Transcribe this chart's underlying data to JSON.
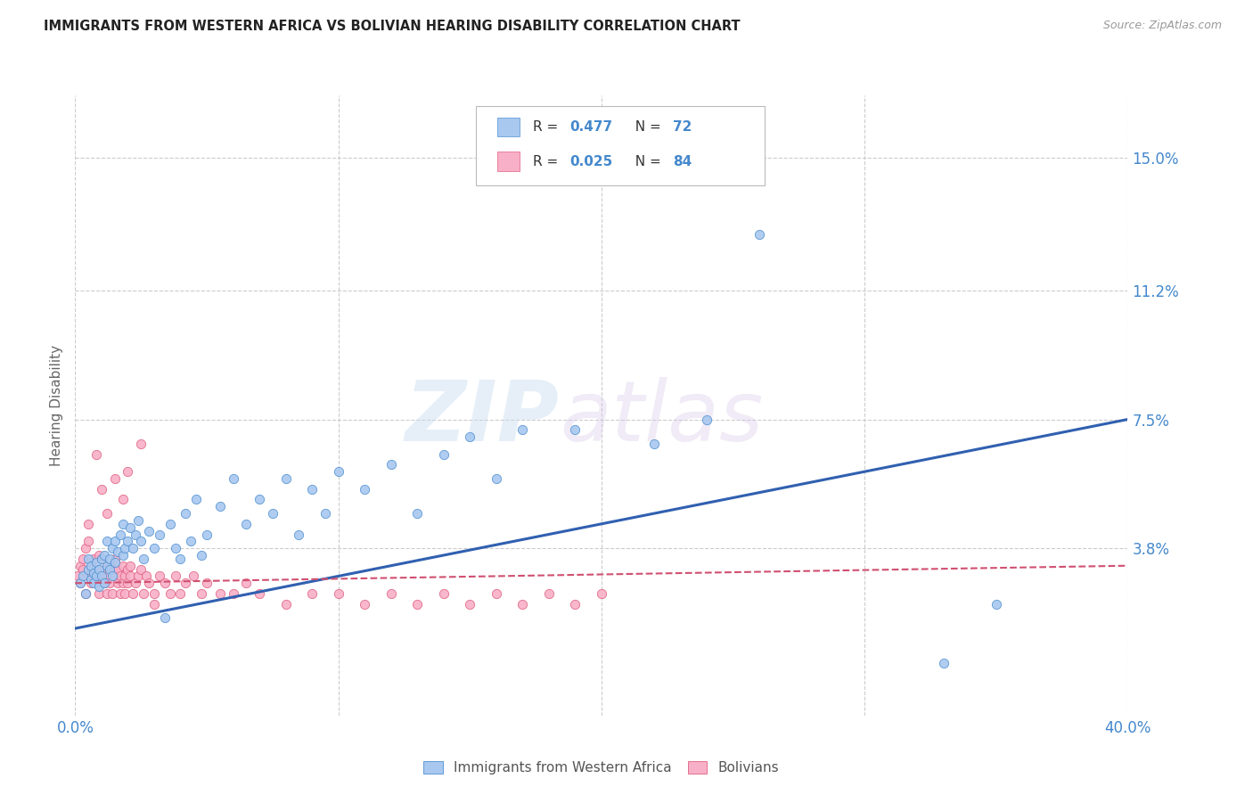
{
  "title": "IMMIGRANTS FROM WESTERN AFRICA VS BOLIVIAN HEARING DISABILITY CORRELATION CHART",
  "source": "Source: ZipAtlas.com",
  "ylabel": "Hearing Disability",
  "ytick_labels": [
    "3.8%",
    "7.5%",
    "11.2%",
    "15.0%"
  ],
  "ytick_values": [
    0.038,
    0.075,
    0.112,
    0.15
  ],
  "xlim": [
    0.0,
    0.4
  ],
  "ylim": [
    -0.01,
    0.168
  ],
  "blue_color": "#A8C8F0",
  "pink_color": "#F8B0C8",
  "blue_edge_color": "#5090D0",
  "pink_edge_color": "#E06080",
  "blue_line_color": "#3060B0",
  "pink_line_color": "#D05070",
  "label1": "Immigrants from Western Africa",
  "label2": "Bolivians",
  "blue_line_x": [
    0.0,
    0.4
  ],
  "blue_line_y": [
    0.015,
    0.075
  ],
  "pink_line_x": [
    0.0,
    0.4
  ],
  "pink_line_y": [
    0.028,
    0.033
  ],
  "blue_scatter_x": [
    0.002,
    0.003,
    0.004,
    0.005,
    0.005,
    0.006,
    0.006,
    0.007,
    0.007,
    0.008,
    0.008,
    0.009,
    0.009,
    0.01,
    0.01,
    0.011,
    0.011,
    0.012,
    0.012,
    0.013,
    0.013,
    0.014,
    0.014,
    0.015,
    0.015,
    0.016,
    0.017,
    0.018,
    0.018,
    0.019,
    0.02,
    0.021,
    0.022,
    0.023,
    0.024,
    0.025,
    0.026,
    0.028,
    0.03,
    0.032,
    0.034,
    0.036,
    0.038,
    0.04,
    0.042,
    0.044,
    0.046,
    0.048,
    0.05,
    0.055,
    0.06,
    0.065,
    0.07,
    0.075,
    0.08,
    0.085,
    0.09,
    0.095,
    0.1,
    0.11,
    0.12,
    0.13,
    0.14,
    0.15,
    0.16,
    0.17,
    0.22,
    0.24,
    0.33,
    0.35,
    0.26,
    0.19
  ],
  "blue_scatter_y": [
    0.028,
    0.03,
    0.025,
    0.032,
    0.035,
    0.029,
    0.033,
    0.031,
    0.028,
    0.034,
    0.03,
    0.032,
    0.027,
    0.035,
    0.03,
    0.036,
    0.028,
    0.033,
    0.04,
    0.032,
    0.035,
    0.038,
    0.03,
    0.04,
    0.034,
    0.037,
    0.042,
    0.036,
    0.045,
    0.038,
    0.04,
    0.044,
    0.038,
    0.042,
    0.046,
    0.04,
    0.035,
    0.043,
    0.038,
    0.042,
    0.018,
    0.045,
    0.038,
    0.035,
    0.048,
    0.04,
    0.052,
    0.036,
    0.042,
    0.05,
    0.058,
    0.045,
    0.052,
    0.048,
    0.058,
    0.042,
    0.055,
    0.048,
    0.06,
    0.055,
    0.062,
    0.048,
    0.065,
    0.07,
    0.058,
    0.072,
    0.068,
    0.075,
    0.005,
    0.022,
    0.128,
    0.072
  ],
  "pink_scatter_x": [
    0.001,
    0.002,
    0.002,
    0.003,
    0.003,
    0.004,
    0.004,
    0.005,
    0.005,
    0.006,
    0.006,
    0.007,
    0.007,
    0.008,
    0.008,
    0.009,
    0.009,
    0.01,
    0.01,
    0.011,
    0.011,
    0.012,
    0.012,
    0.013,
    0.013,
    0.014,
    0.014,
    0.015,
    0.015,
    0.016,
    0.016,
    0.017,
    0.017,
    0.018,
    0.018,
    0.019,
    0.019,
    0.02,
    0.02,
    0.021,
    0.021,
    0.022,
    0.023,
    0.024,
    0.025,
    0.026,
    0.027,
    0.028,
    0.03,
    0.032,
    0.034,
    0.036,
    0.038,
    0.04,
    0.042,
    0.045,
    0.048,
    0.05,
    0.055,
    0.06,
    0.065,
    0.07,
    0.08,
    0.09,
    0.1,
    0.11,
    0.12,
    0.13,
    0.14,
    0.15,
    0.16,
    0.17,
    0.18,
    0.19,
    0.2,
    0.015,
    0.02,
    0.008,
    0.01,
    0.025,
    0.005,
    0.012,
    0.018,
    0.03
  ],
  "pink_scatter_y": [
    0.03,
    0.028,
    0.033,
    0.035,
    0.032,
    0.025,
    0.038,
    0.03,
    0.04,
    0.028,
    0.033,
    0.03,
    0.035,
    0.028,
    0.032,
    0.036,
    0.025,
    0.03,
    0.035,
    0.028,
    0.032,
    0.03,
    0.025,
    0.033,
    0.028,
    0.032,
    0.025,
    0.03,
    0.035,
    0.028,
    0.032,
    0.025,
    0.03,
    0.028,
    0.033,
    0.03,
    0.025,
    0.032,
    0.028,
    0.03,
    0.033,
    0.025,
    0.028,
    0.03,
    0.032,
    0.025,
    0.03,
    0.028,
    0.025,
    0.03,
    0.028,
    0.025,
    0.03,
    0.025,
    0.028,
    0.03,
    0.025,
    0.028,
    0.025,
    0.025,
    0.028,
    0.025,
    0.022,
    0.025,
    0.025,
    0.022,
    0.025,
    0.022,
    0.025,
    0.022,
    0.025,
    0.022,
    0.025,
    0.022,
    0.025,
    0.058,
    0.06,
    0.065,
    0.055,
    0.068,
    0.045,
    0.048,
    0.052,
    0.022
  ]
}
